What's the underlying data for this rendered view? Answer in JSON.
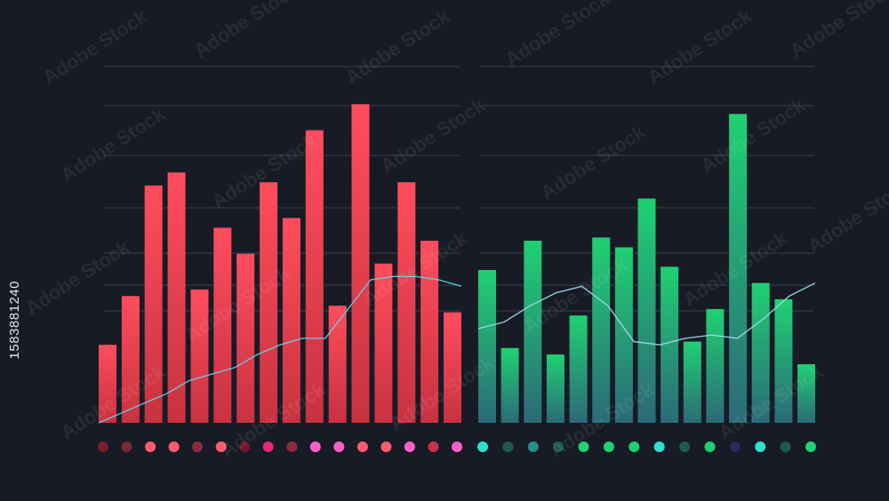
{
  "chart_data": [
    {
      "type": "bar",
      "ylim": [
        0,
        100
      ],
      "grid": true,
      "colors": {
        "top": "#ff4d5e",
        "bottom": "#c8323f",
        "line": "#66d2e6"
      },
      "values": [
        24,
        39,
        73,
        77,
        41,
        60,
        52,
        74,
        63,
        90,
        36,
        98,
        49,
        74,
        56,
        34
      ],
      "line": [
        0,
        3,
        6,
        9,
        13,
        15,
        17,
        21,
        24,
        26,
        26,
        35,
        44,
        45,
        45,
        44,
        42
      ],
      "dots": [
        "#7a1f2a",
        "#7a2a36",
        "#ff5c6e",
        "#ff5c6e",
        "#8c2e3a",
        "#ff5c6e",
        "#6a1a2a",
        "#e8287a",
        "#8c2e3a",
        "#ff5fc8",
        "#ff5fc8",
        "#ff5c6e",
        "#ff5c6e",
        "#ff5fc8",
        "#c83246",
        "#ff5fc8"
      ]
    },
    {
      "type": "bar",
      "ylim": [
        0,
        100
      ],
      "grid": true,
      "colors": {
        "top": "#1fd172",
        "bottom": "#2c6a78",
        "line": "#9fdce8"
      },
      "values": [
        47,
        23,
        56,
        21,
        33,
        57,
        54,
        69,
        48,
        25,
        35,
        95,
        43,
        38,
        18
      ],
      "line": [
        29,
        31,
        36,
        40,
        42,
        36,
        25,
        24,
        26,
        27,
        26,
        32,
        39,
        43
      ],
      "dots": [
        "#2ee0d0",
        "#1f5a50",
        "#2c8c8a",
        "#1f5a50",
        "#1fd172",
        "#1fd172",
        "#1fd172",
        "#2ee0d0",
        "#1f5a50",
        "#1fd172",
        "#2a2a60",
        "#2ee0d0",
        "#1f5a50",
        "#1fd172"
      ]
    }
  ],
  "side_text": "1583881240",
  "watermark": "Adobe Stock"
}
